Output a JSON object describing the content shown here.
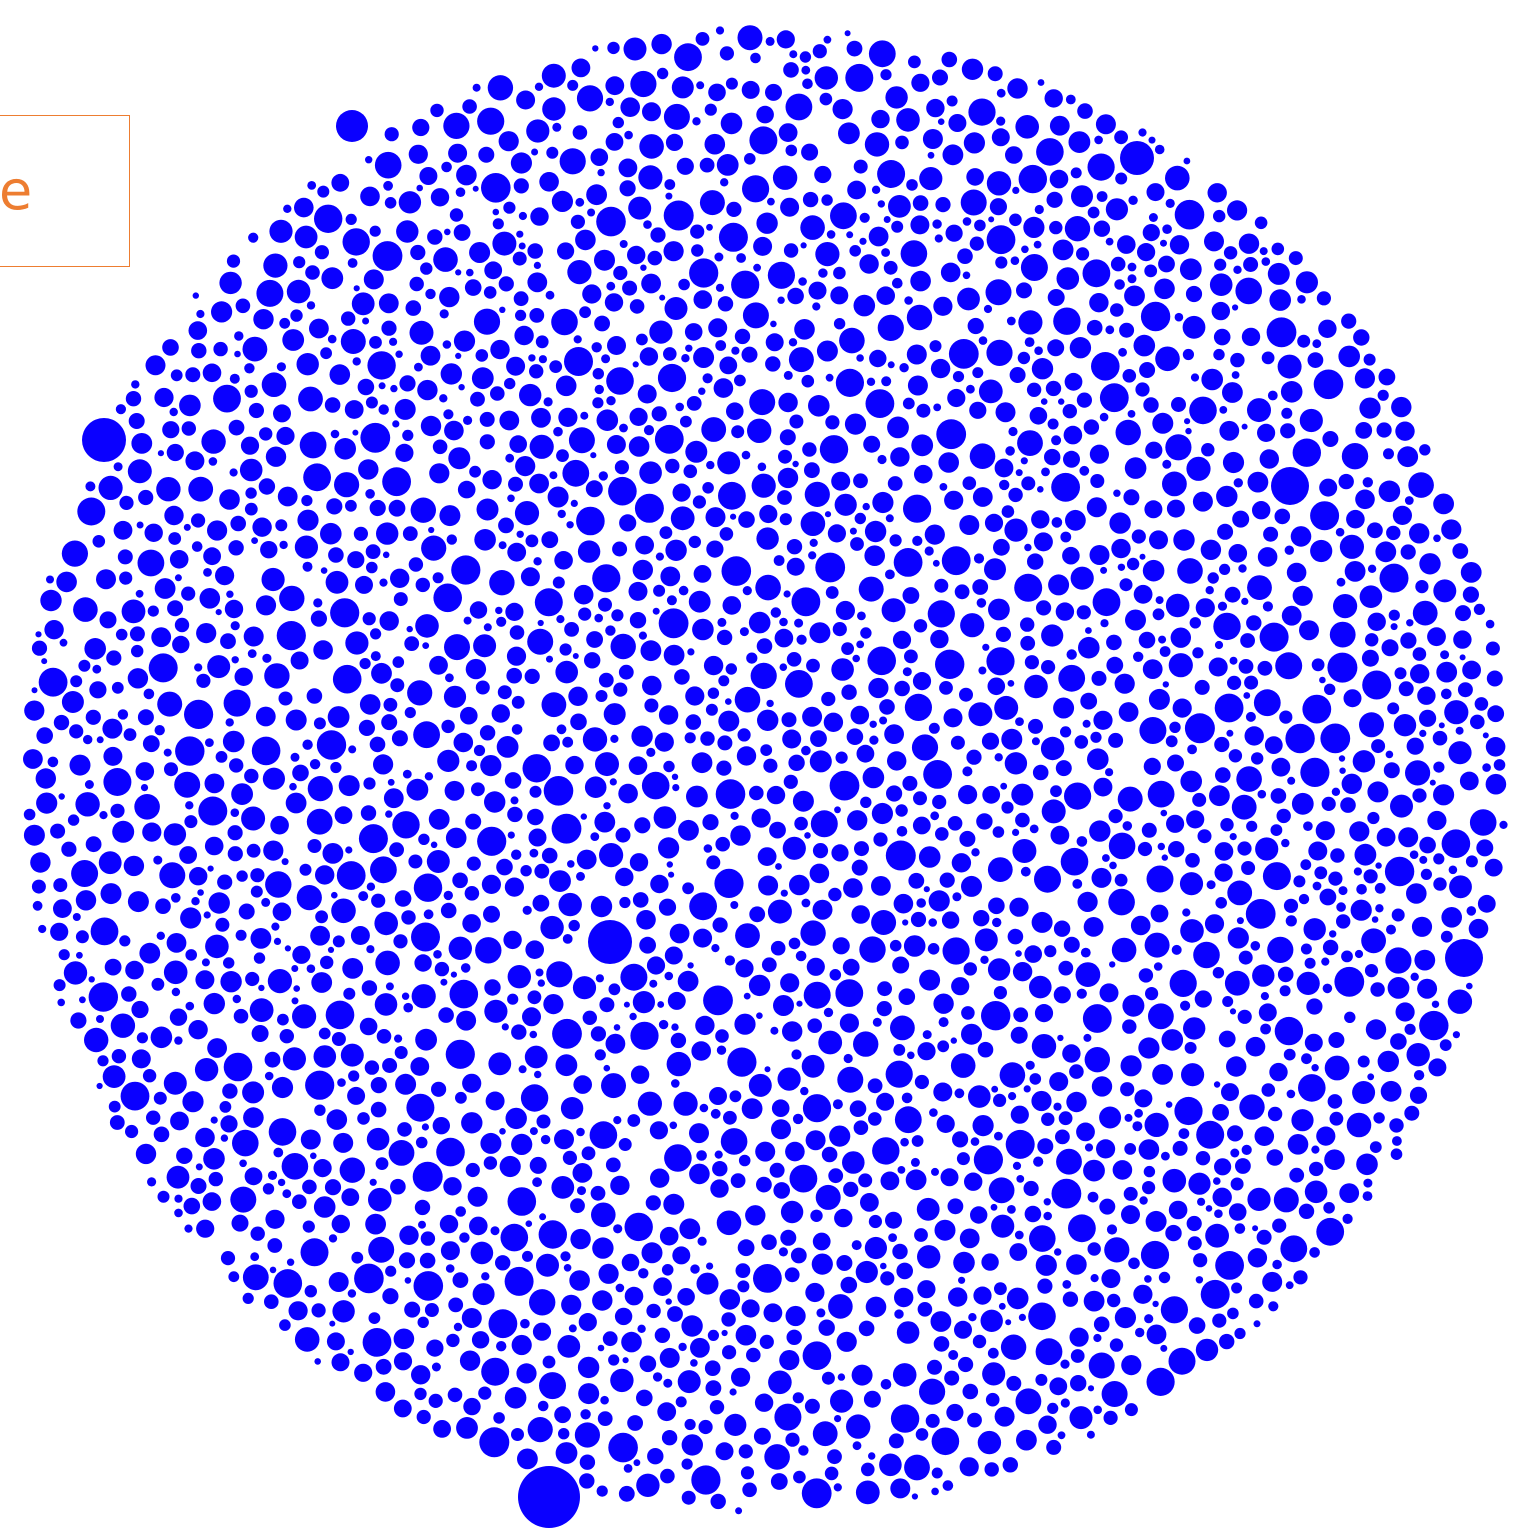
{
  "label": {
    "text": "e",
    "color": "#ED7D31"
  },
  "cluster": {
    "fill_color": "#0A00FF",
    "background": "#FFFFFF",
    "shape": "circle"
  }
}
